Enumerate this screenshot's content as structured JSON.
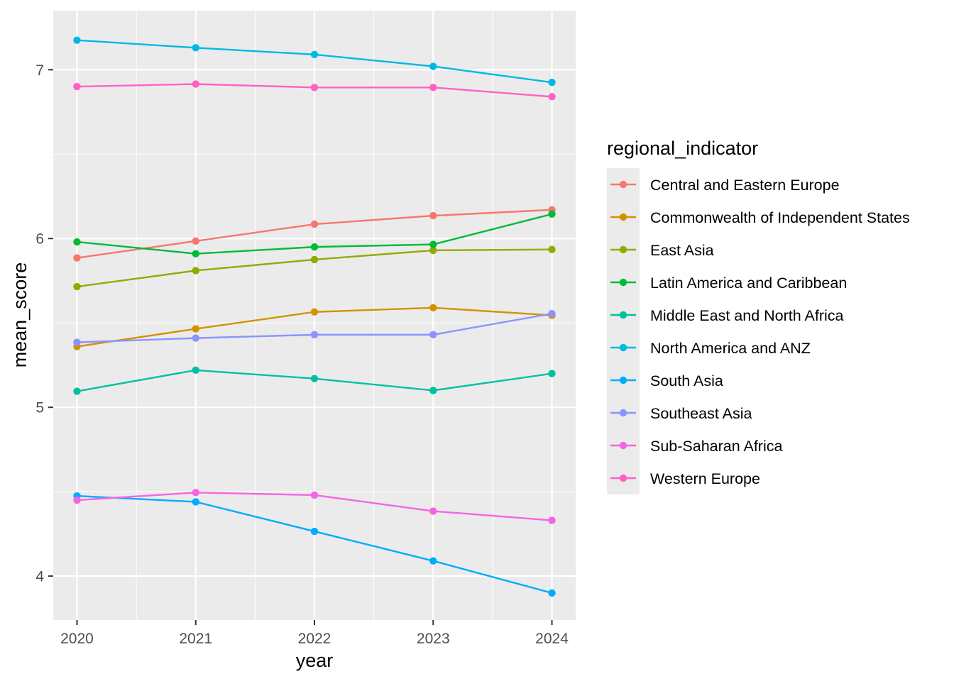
{
  "chart_data": {
    "type": "line",
    "x": [
      2020,
      2021,
      2022,
      2023,
      2024
    ],
    "xlabel": "year",
    "ylabel": "mean_score",
    "xlim": [
      2019.8,
      2024.2
    ],
    "ylim": [
      3.74,
      7.35
    ],
    "xticks": [
      "2020",
      "2021",
      "2022",
      "2023",
      "2024"
    ],
    "yticks": [
      "4",
      "5",
      "6",
      "7"
    ],
    "grid": true,
    "legend": {
      "title": "regional_indicator",
      "position": "right"
    },
    "series": [
      {
        "name": "Central and Eastern Europe",
        "color": "#F8766D",
        "values": [
          5.885,
          5.985,
          6.085,
          6.135,
          6.17
        ]
      },
      {
        "name": "Commonwealth of Independent States",
        "color": "#D39200",
        "values": [
          5.36,
          5.465,
          5.565,
          5.59,
          5.545
        ]
      },
      {
        "name": "East Asia",
        "color": "#93AA00",
        "values": [
          5.715,
          5.81,
          5.875,
          5.93,
          5.935
        ]
      },
      {
        "name": "Latin America and Caribbean",
        "color": "#00BA38",
        "values": [
          5.98,
          5.91,
          5.95,
          5.965,
          6.145
        ]
      },
      {
        "name": "Middle East and North Africa",
        "color": "#00C19F",
        "values": [
          5.095,
          5.22,
          5.17,
          5.1,
          5.2
        ]
      },
      {
        "name": "North America and ANZ",
        "color": "#00B9E3",
        "values": [
          7.175,
          7.13,
          7.09,
          7.02,
          6.925
        ]
      },
      {
        "name": "South Asia",
        "color": "#00ADFA",
        "values": [
          4.475,
          4.44,
          4.265,
          4.09,
          3.9
        ]
      },
      {
        "name": "Southeast Asia",
        "color": "#8B93FF",
        "values": [
          5.385,
          5.41,
          5.43,
          5.43,
          5.555
        ]
      },
      {
        "name": "Sub-Saharan Africa",
        "color": "#F564E3",
        "values": [
          4.45,
          4.495,
          4.48,
          4.385,
          4.33
        ]
      },
      {
        "name": "Western Europe",
        "color": "#FF61C3",
        "values": [
          6.9,
          6.915,
          6.895,
          6.895,
          6.84
        ]
      }
    ]
  }
}
